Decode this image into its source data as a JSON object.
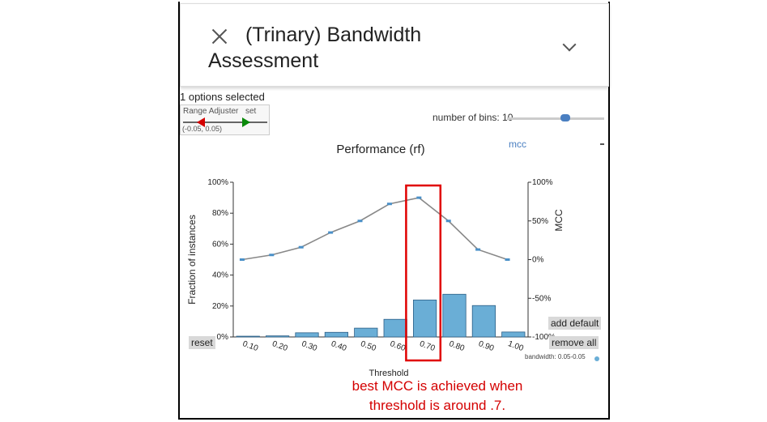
{
  "header": {
    "title_line1": "(Trinary) Bandwidth",
    "title_line2": "Assessment"
  },
  "options": {
    "selected_text": "1 options selected"
  },
  "range_adjuster": {
    "label": "Range Adjuster",
    "set_label": "set",
    "range_text": "(-0.05, 0.05)"
  },
  "bins": {
    "label": "number of bins: 10",
    "value": 10
  },
  "buttons": {
    "reset": "reset",
    "add_default": "add default",
    "remove_all": "remove all"
  },
  "legend": {
    "mcc": "mcc",
    "bandwidth": "bandwidth: 0.05-0.05"
  },
  "annotation": {
    "line1": "best MCC is achieved when",
    "line2": "threshold is around .7."
  },
  "chart_data": {
    "type": "bar",
    "title": "Performance (rf)",
    "xlabel": "Threshold",
    "ylabel": "Fraction of instances",
    "y2label": "MCC",
    "categories": [
      "0.10",
      "0.20",
      "0.30",
      "0.40",
      "0.50",
      "0.60",
      "0.70",
      "0.80",
      "0.90",
      "1.00"
    ],
    "bars": [
      0.5,
      0.7,
      2.7,
      3.0,
      5.7,
      11.4,
      23.9,
      27.6,
      20.3,
      3.2
    ],
    "mcc": [
      0,
      6,
      16,
      35,
      50,
      72,
      80,
      50,
      13,
      0
    ],
    "ylim": [
      0,
      100
    ],
    "y2lim": [
      -100,
      100
    ],
    "yticks": [
      "0%",
      "20%",
      "40%",
      "60%",
      "80%",
      "100%"
    ],
    "y2ticks": [
      "-100%",
      "-50%",
      "0%",
      "50%",
      "100%"
    ],
    "highlight": "0.70",
    "bar_color": "#6aaed6",
    "line_color": "#888888",
    "highlight_color": "#e00000"
  }
}
